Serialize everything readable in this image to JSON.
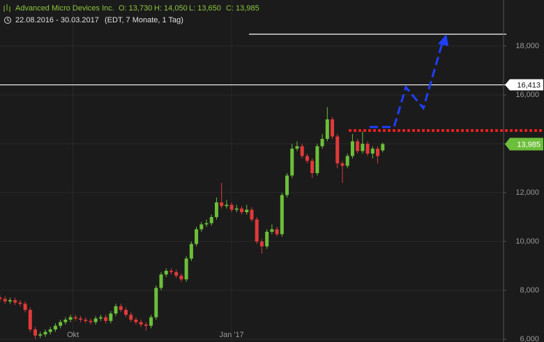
{
  "chart_data": {
    "type": "candlestick",
    "title": "Advanced Micro Devices Inc.",
    "ohlc_labels": [
      "O: 13,730",
      "H: 14,050",
      "L: 13,650",
      "C: 13,985"
    ],
    "date_range": "22.08.2016 - 30.03.2017",
    "details": "(EDT, 7 Monate, 1 Tag)",
    "x": [
      0,
      2,
      4,
      6,
      8,
      10,
      12,
      14,
      16,
      18,
      20,
      22,
      24,
      26,
      28,
      30,
      32,
      34,
      36,
      38,
      40,
      42,
      44,
      46,
      48,
      50,
      52,
      54,
      56,
      58,
      60,
      62,
      64,
      66,
      68,
      70,
      72,
      74,
      76,
      78,
      80,
      82,
      84,
      86,
      88,
      90,
      92,
      94,
      96,
      98,
      100,
      102,
      104,
      106,
      108,
      110,
      112,
      114,
      116,
      118,
      120,
      122,
      124,
      126,
      128,
      130,
      132,
      134,
      136,
      138,
      140,
      142,
      144,
      146,
      148,
      150,
      152
    ],
    "open": [
      7700,
      7650,
      7550,
      7600,
      7500,
      7450,
      7200,
      6400,
      6150,
      6200,
      6300,
      6400,
      6550,
      6700,
      6800,
      6900,
      6850,
      6800,
      6750,
      6700,
      6850,
      6900,
      6750,
      7050,
      7350,
      7200,
      7000,
      6800,
      6700,
      6600,
      6550,
      6900,
      8100,
      8650,
      8800,
      8750,
      8600,
      8450,
      9300,
      9900,
      10500,
      10700,
      10750,
      11000,
      11600,
      11450,
      11500,
      11300,
      11350,
      11200,
      11300,
      10900,
      10000,
      9800,
      10400,
      10500,
      10300,
      11900,
      12700,
      13800,
      13900,
      13500,
      13300,
      12800,
      13900,
      14200,
      15000,
      14300,
      13200,
      13100,
      13500,
      14100,
      13700,
      14000,
      13600,
      13800,
      13730
    ],
    "high": [
      7800,
      7750,
      7700,
      7700,
      7600,
      7550,
      7300,
      6500,
      6300,
      6400,
      6500,
      6650,
      6800,
      6900,
      7000,
      7000,
      6950,
      6900,
      6850,
      6950,
      7000,
      7000,
      7150,
      7450,
      7450,
      7300,
      7100,
      6900,
      6800,
      6700,
      7000,
      8200,
      8750,
      8900,
      8900,
      8850,
      8700,
      9400,
      10000,
      10600,
      10800,
      10900,
      11100,
      11800,
      12400,
      11700,
      11600,
      11500,
      11450,
      11500,
      11400,
      11000,
      10100,
      10500,
      10700,
      10600,
      12000,
      12800,
      14000,
      14100,
      14000,
      13600,
      13400,
      14000,
      14400,
      15500,
      15100,
      14400,
      13300,
      13600,
      14400,
      14200,
      14500,
      14100,
      13900,
      13900,
      14050
    ],
    "low": [
      7550,
      7450,
      7450,
      7400,
      7350,
      7100,
      6300,
      6000,
      6050,
      6100,
      6200,
      6300,
      6450,
      6600,
      6700,
      6750,
      6700,
      6650,
      6600,
      6600,
      6750,
      6650,
      6650,
      6950,
      7100,
      6900,
      6700,
      6600,
      6500,
      6350,
      6450,
      6800,
      8000,
      8550,
      8650,
      8500,
      8350,
      8350,
      9200,
      9800,
      10400,
      10600,
      10650,
      10900,
      11350,
      11350,
      11200,
      11200,
      11100,
      11100,
      10800,
      9900,
      9500,
      9700,
      10300,
      10200,
      10200,
      11800,
      12600,
      13700,
      13400,
      13200,
      12600,
      12700,
      13800,
      14100,
      14200,
      13000,
      12400,
      13000,
      13400,
      13600,
      13600,
      13500,
      13400,
      13200,
      13650
    ],
    "close": [
      7650,
      7550,
      7600,
      7500,
      7450,
      7200,
      6400,
      6150,
      6200,
      6300,
      6400,
      6550,
      6700,
      6800,
      6900,
      6850,
      6800,
      6750,
      6700,
      6850,
      6900,
      6750,
      7050,
      7350,
      7200,
      7000,
      6800,
      6700,
      6600,
      6550,
      6900,
      8100,
      8650,
      8800,
      8750,
      8600,
      8450,
      9300,
      9900,
      10500,
      10700,
      10750,
      11000,
      11600,
      11450,
      11500,
      11300,
      11350,
      11200,
      11300,
      10900,
      10000,
      9800,
      10400,
      10500,
      10300,
      11900,
      12700,
      13800,
      13900,
      13500,
      13300,
      12800,
      13900,
      14200,
      15000,
      14300,
      13200,
      13100,
      13500,
      14100,
      13700,
      14000,
      13600,
      13800,
      13500,
      13985
    ],
    "up_color": "#6cbf3a",
    "down_color": "#e0393a",
    "xlim": [
      0,
      200
    ],
    "xticks": [
      {
        "value": 29,
        "label": "Okt"
      },
      {
        "value": 92,
        "label": "Jan '17"
      }
    ],
    "ylim": [
      5886,
      19886
    ],
    "yticks": [
      {
        "value": 6000,
        "label": "6,000"
      },
      {
        "value": 8000,
        "label": "8,000"
      },
      {
        "value": 10000,
        "label": "10,000"
      },
      {
        "value": 12000,
        "label": "12,000"
      },
      {
        "value": 14000,
        "label": "14,000"
      },
      {
        "value": 16000,
        "label": "16,000"
      },
      {
        "value": 18000,
        "label": "18,000"
      }
    ],
    "grid": true,
    "hlines": [
      {
        "value": 18486,
        "color": "#ffffff"
      },
      {
        "value": 16413,
        "color": "#ffffff",
        "label": "16,413"
      },
      {
        "value": 14543,
        "color": "#e01f1f"
      }
    ],
    "last_price": {
      "value": 13985,
      "label": "13,985",
      "color": "#6cbf3a"
    }
  }
}
